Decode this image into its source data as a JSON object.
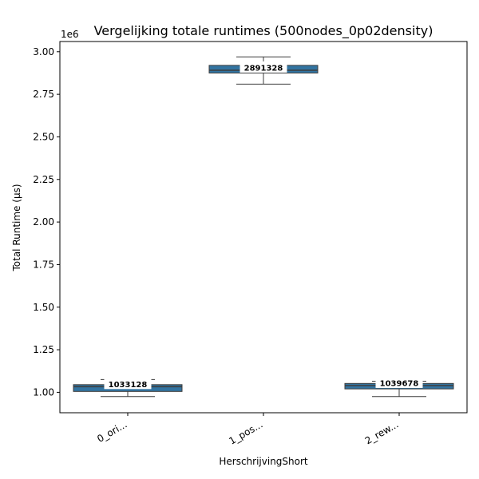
{
  "chart_data": {
    "type": "box",
    "title": "Vergelijking totale runtimes (500nodes_0p02density)",
    "xlabel": "HerschrijvingShort",
    "ylabel": "Total Runtime (µs)",
    "y_multiplier": "1e6",
    "ylim": [
      880000,
      3060000
    ],
    "yticks": [
      1000000,
      1250000,
      1500000,
      1750000,
      2000000,
      2250000,
      2500000,
      2750000,
      3000000
    ],
    "ytick_labels": [
      "1.00",
      "1.25",
      "1.50",
      "1.75",
      "2.00",
      "2.25",
      "2.50",
      "2.75",
      "3.00"
    ],
    "categories": [
      "0_ori...",
      "1_pos...",
      "2_rew..."
    ],
    "boxes": [
      {
        "min": 975000,
        "q1": 1005000,
        "median": 1033128,
        "q3": 1045000,
        "max": 1075000,
        "median_label": "1033128"
      },
      {
        "min": 2810000,
        "q1": 2875000,
        "median": 2891328,
        "q3": 2920000,
        "max": 2970000,
        "median_label": "2891328"
      },
      {
        "min": 975000,
        "q1": 1020000,
        "median": 1039678,
        "q3": 1052000,
        "max": 1065000,
        "median_label": "1039678"
      }
    ],
    "box_color": "#3274a1",
    "grid": false,
    "legend": "none"
  }
}
